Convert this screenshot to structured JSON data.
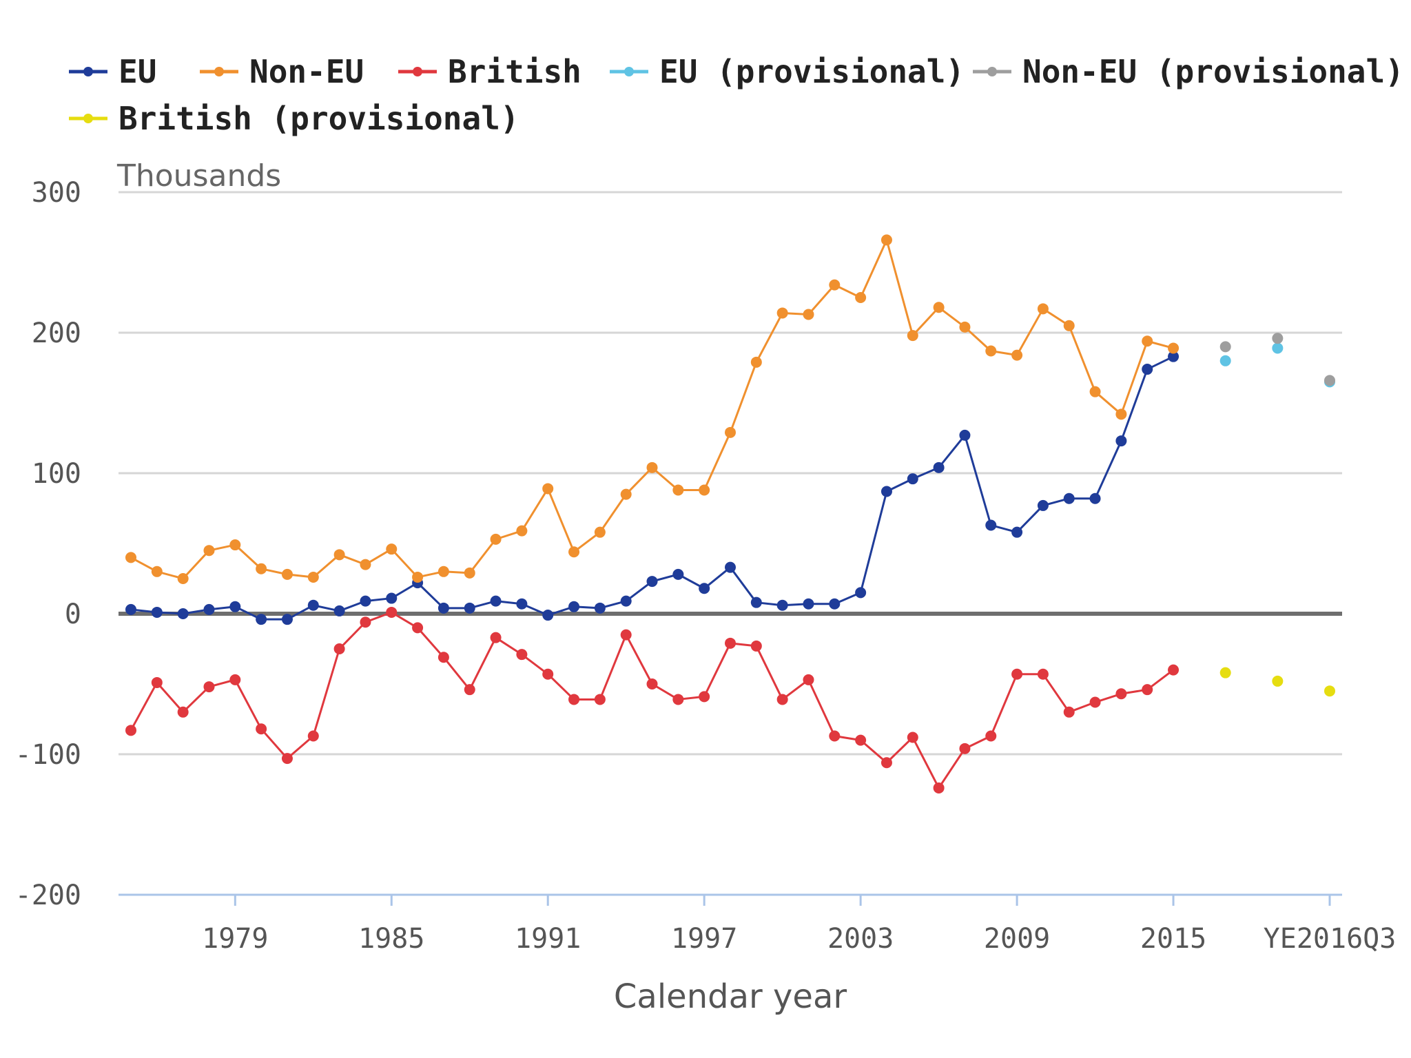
{
  "chart_data": {
    "type": "line",
    "unit_label": "Thousands",
    "xlabel": "Calendar year",
    "ylabel": "",
    "ylim": [
      -200,
      300
    ],
    "y_ticks": [
      300,
      200,
      100,
      0,
      -100,
      -200
    ],
    "grid": true,
    "legend_position": "top",
    "x_ticks": [
      {
        "label": "1979",
        "x": 1979
      },
      {
        "label": "1985",
        "x": 1985
      },
      {
        "label": "1991",
        "x": 1991
      },
      {
        "label": "1997",
        "x": 1997
      },
      {
        "label": "2003",
        "x": 2003
      },
      {
        "label": "2009",
        "x": 2009
      },
      {
        "label": "2015",
        "x": 2015
      },
      {
        "label": "YE2016Q3",
        "x": 2021
      }
    ],
    "series": [
      {
        "name": "EU",
        "color": "#1f3c99",
        "line": true,
        "x": [
          1975,
          1976,
          1977,
          1978,
          1979,
          1980,
          1981,
          1982,
          1983,
          1984,
          1985,
          1986,
          1987,
          1988,
          1989,
          1990,
          1991,
          1992,
          1993,
          1994,
          1995,
          1996,
          1997,
          1998,
          1999,
          2000,
          2001,
          2002,
          2003,
          2004,
          2005,
          2006,
          2007,
          2008,
          2009,
          2010,
          2011,
          2012,
          2013,
          2014,
          2015
        ],
        "values": [
          3,
          1,
          0,
          3,
          5,
          -4,
          -4,
          6,
          2,
          9,
          11,
          22,
          4,
          4,
          9,
          7,
          -1,
          5,
          4,
          9,
          23,
          28,
          18,
          33,
          8,
          6,
          7,
          7,
          15,
          87,
          96,
          104,
          127,
          63,
          58,
          77,
          82,
          82,
          123,
          174,
          183
        ]
      },
      {
        "name": "Non-EU",
        "color": "#f0902e",
        "line": true,
        "x": [
          1975,
          1976,
          1977,
          1978,
          1979,
          1980,
          1981,
          1982,
          1983,
          1984,
          1985,
          1986,
          1987,
          1988,
          1989,
          1990,
          1991,
          1992,
          1993,
          1994,
          1995,
          1996,
          1997,
          1998,
          1999,
          2000,
          2001,
          2002,
          2003,
          2004,
          2005,
          2006,
          2007,
          2008,
          2009,
          2010,
          2011,
          2012,
          2013,
          2014,
          2015
        ],
        "values": [
          40,
          30,
          25,
          45,
          49,
          32,
          28,
          26,
          42,
          35,
          46,
          26,
          30,
          29,
          53,
          59,
          89,
          44,
          58,
          85,
          104,
          88,
          88,
          129,
          179,
          214,
          213,
          234,
          225,
          266,
          198,
          218,
          204,
          187,
          184,
          217,
          205,
          158,
          142,
          194,
          189
        ]
      },
      {
        "name": "British",
        "color": "#e0383e",
        "line": true,
        "x": [
          1975,
          1976,
          1977,
          1978,
          1979,
          1980,
          1981,
          1982,
          1983,
          1984,
          1985,
          1986,
          1987,
          1988,
          1989,
          1990,
          1991,
          1992,
          1993,
          1994,
          1995,
          1996,
          1997,
          1998,
          1999,
          2000,
          2001,
          2002,
          2003,
          2004,
          2005,
          2006,
          2007,
          2008,
          2009,
          2010,
          2011,
          2012,
          2013,
          2014,
          2015
        ],
        "values": [
          -83,
          -49,
          -70,
          -52,
          -47,
          -82,
          -103,
          -87,
          -25,
          -6,
          1,
          -10,
          -31,
          -54,
          -17,
          -29,
          -43,
          -61,
          -61,
          -15,
          -50,
          -61,
          -59,
          -21,
          -23,
          -61,
          -47,
          -87,
          -90,
          -106,
          -88,
          -124,
          -96,
          -87,
          -43,
          -43,
          -70,
          -63,
          -57,
          -54,
          -40
        ]
      },
      {
        "name": "EU (provisional)",
        "color": "#5fc3e4",
        "line": false,
        "x": [
          2017,
          2019,
          2021
        ],
        "values": [
          180,
          189,
          165
        ]
      },
      {
        "name": "Non-EU (provisional)",
        "color": "#9e9e9e",
        "line": false,
        "x": [
          2017,
          2019,
          2021
        ],
        "values": [
          190,
          196,
          166
        ]
      },
      {
        "name": "British (provisional)",
        "color": "#e6dd10",
        "line": false,
        "x": [
          2017,
          2019,
          2021
        ],
        "values": [
          -42,
          -48,
          -55
        ]
      }
    ]
  }
}
